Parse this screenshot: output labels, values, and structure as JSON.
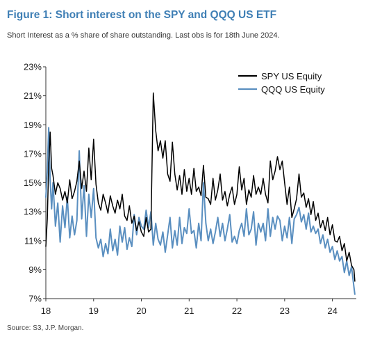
{
  "header": {
    "title": "Figure 1: Short interest on the SPY and QQQ US ETF",
    "subtitle": "Short Interest as a % share of share outstanding. Last obs is for 18th June 2024."
  },
  "footer": {
    "source": "Source: S3, J.P. Morgan."
  },
  "colors": {
    "spy": "#000000",
    "qqq": "#5a8fc0",
    "axis": "#333333"
  },
  "chart_data": {
    "type": "line",
    "title": "Figure 1: Short interest on the SPY and QQQ US ETF",
    "subtitle": "Short Interest as a % share of share outstanding. Last obs is for 18th June 2024.",
    "xlabel": "",
    "ylabel": "",
    "xlim": [
      2018.0,
      2024.55
    ],
    "ylim": [
      7,
      23
    ],
    "x_ticks": [
      2018,
      2019,
      2020,
      2021,
      2022,
      2023,
      2024
    ],
    "x_tick_labels": [
      "18",
      "19",
      "20",
      "21",
      "22",
      "23",
      "24"
    ],
    "y_ticks": [
      7,
      9,
      11,
      13,
      15,
      17,
      19,
      21,
      23
    ],
    "y_tick_labels": [
      "7%",
      "9%",
      "11%",
      "13%",
      "15%",
      "17%",
      "19%",
      "21%",
      "23%"
    ],
    "grid": false,
    "legend_position": "top-right",
    "series": [
      {
        "name": "SPY US Equity",
        "color": "#000000",
        "x": [
          2018.0,
          2018.03,
          2018.06,
          2018.09,
          2018.12,
          2018.15,
          2018.2,
          2018.25,
          2018.3,
          2018.35,
          2018.4,
          2018.45,
          2018.5,
          2018.55,
          2018.6,
          2018.65,
          2018.7,
          2018.75,
          2018.8,
          2018.85,
          2018.9,
          2018.95,
          2019.0,
          2019.05,
          2019.1,
          2019.15,
          2019.2,
          2019.25,
          2019.3,
          2019.35,
          2019.4,
          2019.45,
          2019.5,
          2019.55,
          2019.6,
          2019.65,
          2019.7,
          2019.75,
          2019.8,
          2019.85,
          2019.9,
          2019.95,
          2020.0,
          2020.05,
          2020.1,
          2020.15,
          2020.2,
          2020.25,
          2020.3,
          2020.35,
          2020.4,
          2020.45,
          2020.5,
          2020.55,
          2020.6,
          2020.65,
          2020.7,
          2020.75,
          2020.8,
          2020.85,
          2020.9,
          2020.95,
          2021.0,
          2021.05,
          2021.1,
          2021.15,
          2021.2,
          2021.25,
          2021.3,
          2021.35,
          2021.4,
          2021.45,
          2021.5,
          2021.55,
          2021.6,
          2021.65,
          2021.7,
          2021.75,
          2021.8,
          2021.85,
          2021.9,
          2021.95,
          2022.0,
          2022.05,
          2022.1,
          2022.15,
          2022.2,
          2022.25,
          2022.3,
          2022.35,
          2022.4,
          2022.45,
          2022.5,
          2022.55,
          2022.6,
          2022.65,
          2022.7,
          2022.75,
          2022.8,
          2022.85,
          2022.9,
          2022.95,
          2023.0,
          2023.05,
          2023.1,
          2023.15,
          2023.2,
          2023.25,
          2023.3,
          2023.35,
          2023.4,
          2023.45,
          2023.5,
          2023.55,
          2023.6,
          2023.65,
          2023.7,
          2023.75,
          2023.8,
          2023.85,
          2023.9,
          2023.95,
          2024.0,
          2024.05,
          2024.1,
          2024.15,
          2024.2,
          2024.25,
          2024.3,
          2024.35,
          2024.4,
          2024.45,
          2024.47
        ],
        "values": [
          10.6,
          12.5,
          16.2,
          18.5,
          16.0,
          15.5,
          14.2,
          15.0,
          14.6,
          13.8,
          14.4,
          13.6,
          15.2,
          13.9,
          14.4,
          15.1,
          16.5,
          14.6,
          15.8,
          14.4,
          17.4,
          15.2,
          18.0,
          14.9,
          13.6,
          13.1,
          14.2,
          13.6,
          12.9,
          14.1,
          13.4,
          12.9,
          13.8,
          13.2,
          14.2,
          12.7,
          12.4,
          13.4,
          12.2,
          12.7,
          11.7,
          12.3,
          11.6,
          11.3,
          12.6,
          11.6,
          11.8,
          21.2,
          18.6,
          17.2,
          17.9,
          16.7,
          17.9,
          15.6,
          15.1,
          17.8,
          15.6,
          14.5,
          15.5,
          14.2,
          15.9,
          14.4,
          15.3,
          14.2,
          16.0,
          14.4,
          14.7,
          14.1,
          16.2,
          14.0,
          13.9,
          13.5,
          15.3,
          13.8,
          14.5,
          15.6,
          13.8,
          14.4,
          13.4,
          14.2,
          14.7,
          13.5,
          14.2,
          16.1,
          14.5,
          15.3,
          13.5,
          14.5,
          14.0,
          15.5,
          14.2,
          14.7,
          14.2,
          15.3,
          14.2,
          13.6,
          16.5,
          15.2,
          15.8,
          16.8,
          15.9,
          16.5,
          15.0,
          13.5,
          14.7,
          12.6,
          13.2,
          13.9,
          15.6,
          14.0,
          14.3,
          13.3,
          13.9,
          12.8,
          13.7,
          12.4,
          12.9,
          11.9,
          12.4,
          11.7,
          12.6,
          11.4,
          12.1,
          11.0,
          10.9,
          11.3,
          10.3,
          10.8,
          9.6,
          10.2,
          9.3,
          9.0,
          8.2
        ]
      },
      {
        "name": "QQQ US Equity",
        "color": "#5a8fc0",
        "x": [
          2018.0,
          2018.03,
          2018.06,
          2018.09,
          2018.12,
          2018.15,
          2018.2,
          2018.25,
          2018.3,
          2018.35,
          2018.4,
          2018.45,
          2018.5,
          2018.55,
          2018.6,
          2018.65,
          2018.7,
          2018.75,
          2018.8,
          2018.85,
          2018.9,
          2018.95,
          2019.0,
          2019.05,
          2019.1,
          2019.15,
          2019.2,
          2019.25,
          2019.3,
          2019.35,
          2019.4,
          2019.45,
          2019.5,
          2019.55,
          2019.6,
          2019.65,
          2019.7,
          2019.75,
          2019.8,
          2019.85,
          2019.9,
          2019.95,
          2020.0,
          2020.05,
          2020.1,
          2020.15,
          2020.2,
          2020.25,
          2020.3,
          2020.35,
          2020.4,
          2020.45,
          2020.5,
          2020.55,
          2020.6,
          2020.65,
          2020.7,
          2020.75,
          2020.8,
          2020.85,
          2020.9,
          2020.95,
          2021.0,
          2021.05,
          2021.1,
          2021.15,
          2021.2,
          2021.25,
          2021.3,
          2021.35,
          2021.4,
          2021.45,
          2021.5,
          2021.55,
          2021.6,
          2021.65,
          2021.7,
          2021.75,
          2021.8,
          2021.85,
          2021.9,
          2021.95,
          2022.0,
          2022.05,
          2022.1,
          2022.15,
          2022.2,
          2022.25,
          2022.3,
          2022.35,
          2022.4,
          2022.45,
          2022.5,
          2022.55,
          2022.6,
          2022.65,
          2022.7,
          2022.75,
          2022.8,
          2022.85,
          2022.9,
          2022.95,
          2023.0,
          2023.05,
          2023.1,
          2023.15,
          2023.2,
          2023.25,
          2023.3,
          2023.35,
          2023.4,
          2023.45,
          2023.5,
          2023.55,
          2023.6,
          2023.65,
          2023.7,
          2023.75,
          2023.8,
          2023.85,
          2023.9,
          2023.95,
          2024.0,
          2024.05,
          2024.1,
          2024.15,
          2024.2,
          2024.25,
          2024.3,
          2024.35,
          2024.4,
          2024.45,
          2024.47
        ],
        "values": [
          14.0,
          15.8,
          18.8,
          15.2,
          13.2,
          15.0,
          12.0,
          13.6,
          10.9,
          13.4,
          11.9,
          14.0,
          11.2,
          12.7,
          11.4,
          12.4,
          17.2,
          12.5,
          14.8,
          11.3,
          14.2,
          12.6,
          14.6,
          11.2,
          10.5,
          11.1,
          9.9,
          10.8,
          10.1,
          11.8,
          10.3,
          11.1,
          10.0,
          12.0,
          10.9,
          11.9,
          10.4,
          11.2,
          10.6,
          12.8,
          11.4,
          12.6,
          12.0,
          11.8,
          13.1,
          11.9,
          13.0,
          10.7,
          12.2,
          11.1,
          10.7,
          11.6,
          10.2,
          11.4,
          12.6,
          10.5,
          11.7,
          10.7,
          12.6,
          10.8,
          11.9,
          11.5,
          13.2,
          11.5,
          11.7,
          10.5,
          12.2,
          11.0,
          15.0,
          12.2,
          11.0,
          11.8,
          10.8,
          11.6,
          12.6,
          11.3,
          12.2,
          11.0,
          11.8,
          12.8,
          10.9,
          11.3,
          10.8,
          11.7,
          12.2,
          11.3,
          13.2,
          11.4,
          11.8,
          13.0,
          10.7,
          12.2,
          11.6,
          12.2,
          11.0,
          13.2,
          11.3,
          12.6,
          11.8,
          12.7,
          12.4,
          11.0,
          12.0,
          11.2,
          12.6,
          10.8,
          12.5,
          12.8,
          13.3,
          12.3,
          12.8,
          11.8,
          12.9,
          11.6,
          12.0,
          11.5,
          11.8,
          10.8,
          11.4,
          10.5,
          11.1,
          10.2,
          10.6,
          9.7,
          10.3,
          9.6,
          9.9,
          8.8,
          9.6,
          8.6,
          9.2,
          7.8,
          7.3
        ]
      }
    ]
  }
}
